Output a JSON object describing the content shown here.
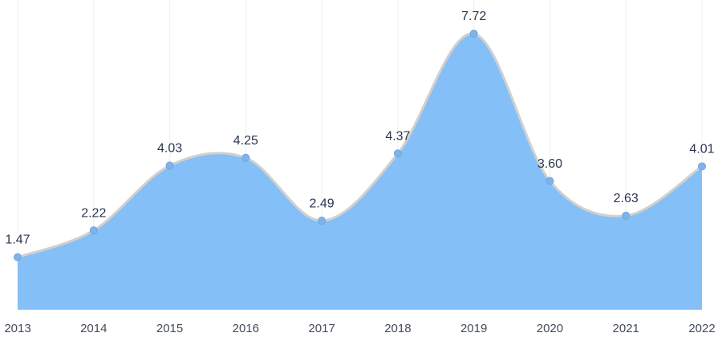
{
  "chart_data": {
    "type": "area",
    "categories": [
      "2013",
      "2014",
      "2015",
      "2016",
      "2017",
      "2018",
      "2019",
      "2020",
      "2021",
      "2022"
    ],
    "values": [
      1.47,
      2.22,
      4.03,
      4.25,
      2.49,
      4.37,
      7.72,
      3.6,
      2.63,
      4.01
    ],
    "value_labels": [
      "1.47",
      "2.22",
      "4.03",
      "4.25",
      "2.49",
      "4.37",
      "7.72",
      "3.60",
      "2.63",
      "4.01"
    ],
    "color": "#84bff7",
    "line_color": "#d0d0d0",
    "point_color": "#7fb3ea",
    "grid": true
  }
}
